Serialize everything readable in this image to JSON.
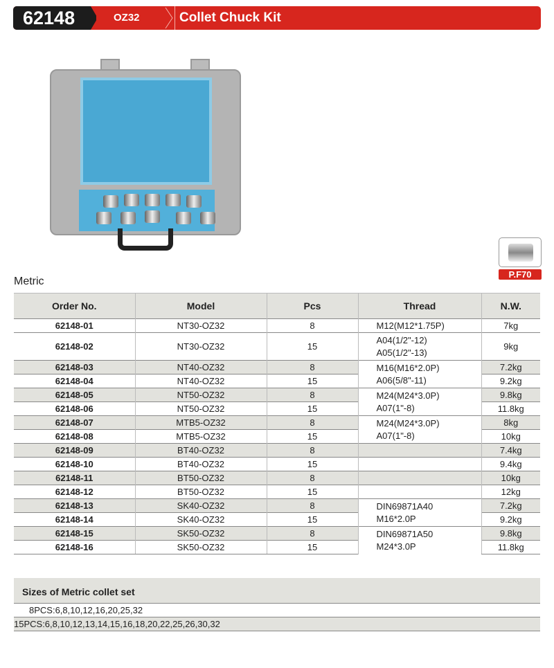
{
  "header": {
    "code": "62148",
    "series": "OZ32",
    "title": "Collet Chuck Kit",
    "accent": "#d7261e"
  },
  "product_badge": {
    "label": "P.F70"
  },
  "section_label": "Metric",
  "table": {
    "headers": [
      "Order No.",
      "Model",
      "Pcs",
      "Thread",
      "N.W."
    ],
    "rows": [
      {
        "order": "62148-01",
        "model": "NT30-OZ32",
        "pcs": "8",
        "nw": "7kg"
      },
      {
        "order": "62148-02",
        "model": "NT30-OZ32",
        "pcs": "15",
        "nw": "9kg"
      },
      {
        "order": "62148-03",
        "model": "NT40-OZ32",
        "pcs": "8",
        "nw": "7.2kg"
      },
      {
        "order": "62148-04",
        "model": "NT40-OZ32",
        "pcs": "15",
        "nw": "9.2kg"
      },
      {
        "order": "62148-05",
        "model": "NT50-OZ32",
        "pcs": "8",
        "nw": "9.8kg"
      },
      {
        "order": "62148-06",
        "model": "NT50-OZ32",
        "pcs": "15",
        "nw": "11.8kg"
      },
      {
        "order": "62148-07",
        "model": "MTB5-OZ32",
        "pcs": "8",
        "nw": "8kg"
      },
      {
        "order": "62148-08",
        "model": "MTB5-OZ32",
        "pcs": "15",
        "nw": "10kg"
      },
      {
        "order": "62148-09",
        "model": "BT40-OZ32",
        "pcs": "8",
        "nw": "7.4kg"
      },
      {
        "order": "62148-10",
        "model": "BT40-OZ32",
        "pcs": "15",
        "nw": "9.4kg"
      },
      {
        "order": "62148-11",
        "model": "BT50-OZ32",
        "pcs": "8",
        "nw": "10kg"
      },
      {
        "order": "62148-12",
        "model": "BT50-OZ32",
        "pcs": "15",
        "nw": "12kg"
      },
      {
        "order": "62148-13",
        "model": "SK40-OZ32",
        "pcs": "8",
        "nw": "7.2kg"
      },
      {
        "order": "62148-14",
        "model": "SK40-OZ32",
        "pcs": "15",
        "nw": "9.2kg"
      },
      {
        "order": "62148-15",
        "model": "SK50-OZ32",
        "pcs": "8",
        "nw": "9.8kg"
      },
      {
        "order": "62148-16",
        "model": "SK50-OZ32",
        "pcs": "15",
        "nw": "11.8kg"
      }
    ],
    "threads": [
      {
        "start": 0,
        "span": 1,
        "lines": [
          "M12(M12*1.75P)"
        ]
      },
      {
        "start": 1,
        "span": 1,
        "lines": [
          "A04(1/2\"-12)",
          "A05(1/2\"-13)"
        ]
      },
      {
        "start": 2,
        "span": 2,
        "lines": [
          "M16(M16*2.0P)",
          "A06(5/8\"-11)"
        ]
      },
      {
        "start": 4,
        "span": 2,
        "lines": [
          "M24(M24*3.0P)",
          "A07(1\"-8)"
        ]
      },
      {
        "start": 6,
        "span": 2,
        "lines": [
          "M24(M24*3.0P)",
          "A07(1\"-8)"
        ]
      },
      {
        "start": 8,
        "span": 1,
        "lines": []
      },
      {
        "start": 9,
        "span": 1,
        "lines": []
      },
      {
        "start": 10,
        "span": 1,
        "lines": []
      },
      {
        "start": 11,
        "span": 1,
        "lines": []
      },
      {
        "start": 12,
        "span": 2,
        "lines": [
          "DIN69871A40",
          "M16*2.0P"
        ]
      },
      {
        "start": 14,
        "span": 2,
        "lines": [
          "DIN69871A50",
          "M24*3.0P"
        ]
      }
    ]
  },
  "sizes": {
    "title": "Sizes of Metric collet set",
    "rows": [
      "8PCS:6,8,10,12,16,20,25,32",
      "15PCS:6,8,10,12,13,14,15,16,18,20,22,25,26,30,32"
    ]
  }
}
